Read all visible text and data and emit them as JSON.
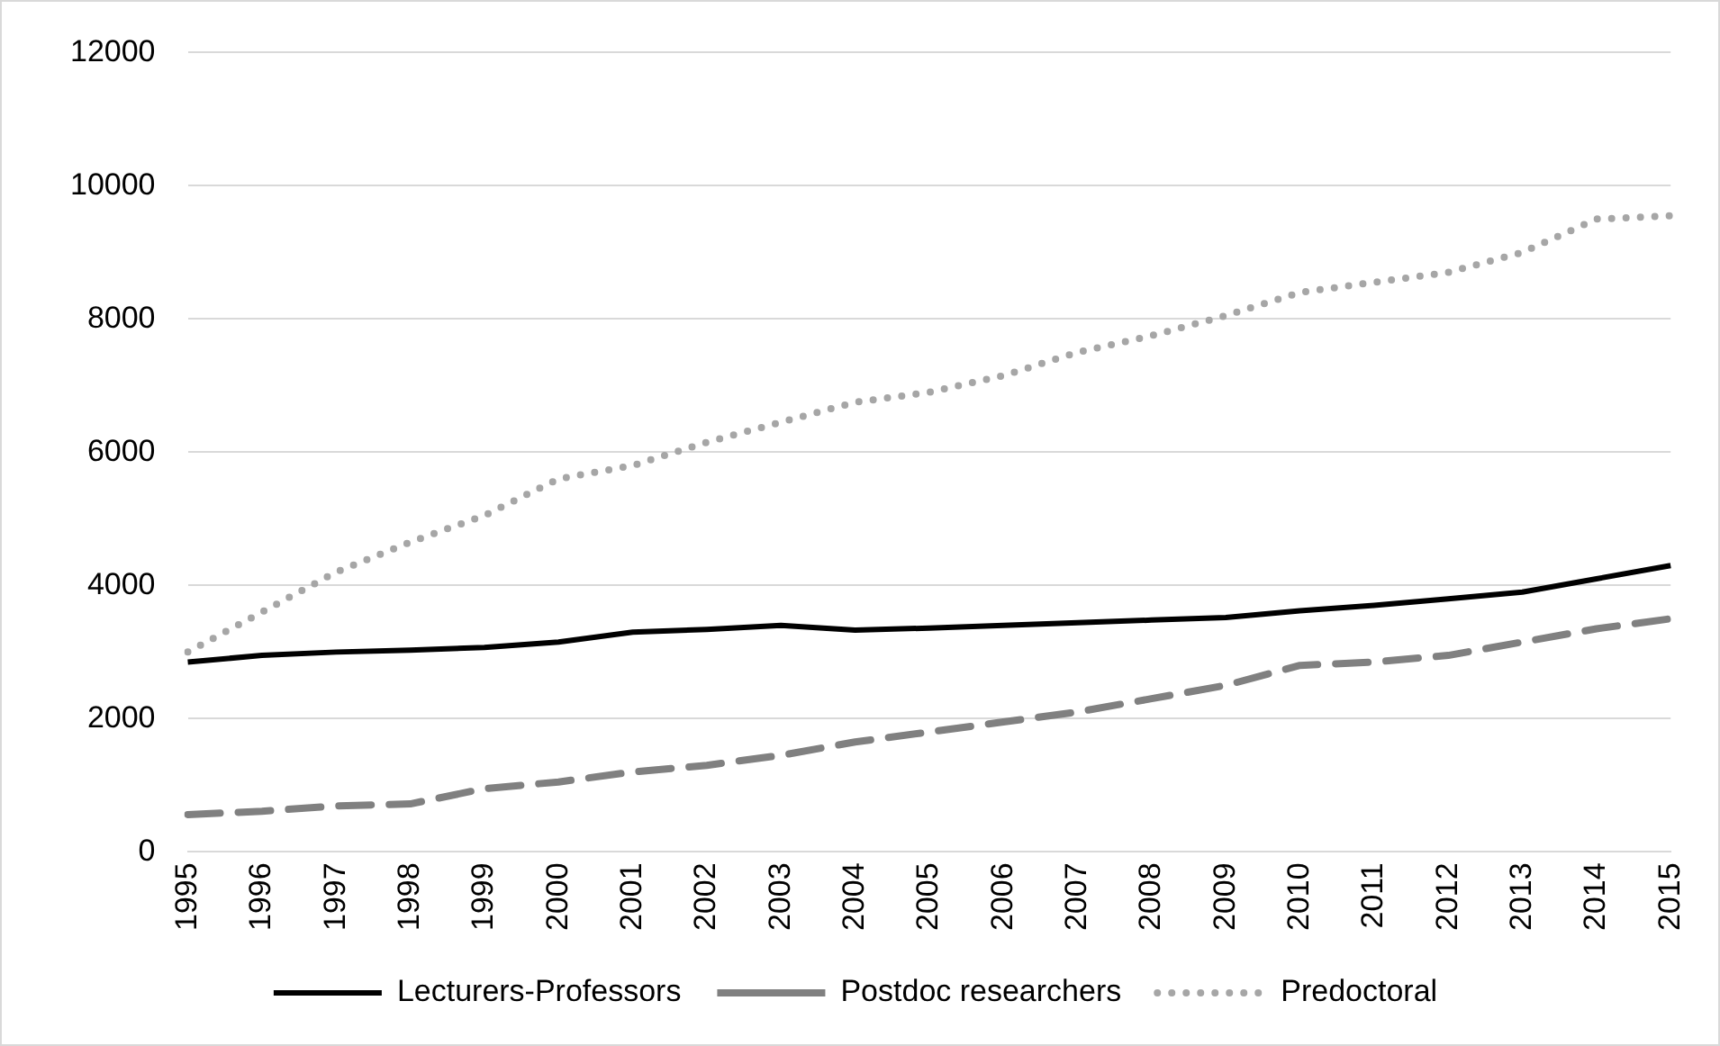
{
  "chart_data": {
    "type": "line",
    "categories": [
      "1995",
      "1996",
      "1997",
      "1998",
      "1999",
      "2000",
      "2001",
      "2002",
      "2003",
      "2004",
      "2005",
      "2006",
      "2007",
      "2008",
      "2009",
      "2010",
      "2011",
      "2012",
      "2013",
      "2014",
      "2015"
    ],
    "series": [
      {
        "name": "Lecturers-Professors",
        "color": "#000000",
        "line_style": "solid",
        "values": [
          2850,
          2950,
          3000,
          3030,
          3070,
          3150,
          3300,
          3340,
          3400,
          3330,
          3360,
          3400,
          3440,
          3480,
          3520,
          3620,
          3700,
          3800,
          3900,
          4100,
          4300
        ]
      },
      {
        "name": "Postdoc researchers",
        "color": "#808080",
        "line_style": "dashed",
        "values": [
          560,
          610,
          690,
          720,
          950,
          1050,
          1200,
          1300,
          1450,
          1650,
          1800,
          1950,
          2100,
          2300,
          2500,
          2800,
          2850,
          2950,
          3150,
          3350,
          3500
        ]
      },
      {
        "name": "Predoctoral",
        "color": "#a6a6a6",
        "line_style": "dotted",
        "values": [
          3000,
          3600,
          4200,
          4650,
          5050,
          5600,
          5800,
          6150,
          6450,
          6750,
          6900,
          7150,
          7500,
          7750,
          8050,
          8400,
          8550,
          8700,
          9000,
          9500,
          9550
        ]
      }
    ],
    "ylim": [
      0,
      12000
    ],
    "yticks": [
      0,
      2000,
      4000,
      6000,
      8000,
      10000,
      12000
    ],
    "grid": "y",
    "legend": "bottom",
    "marker": "none"
  }
}
